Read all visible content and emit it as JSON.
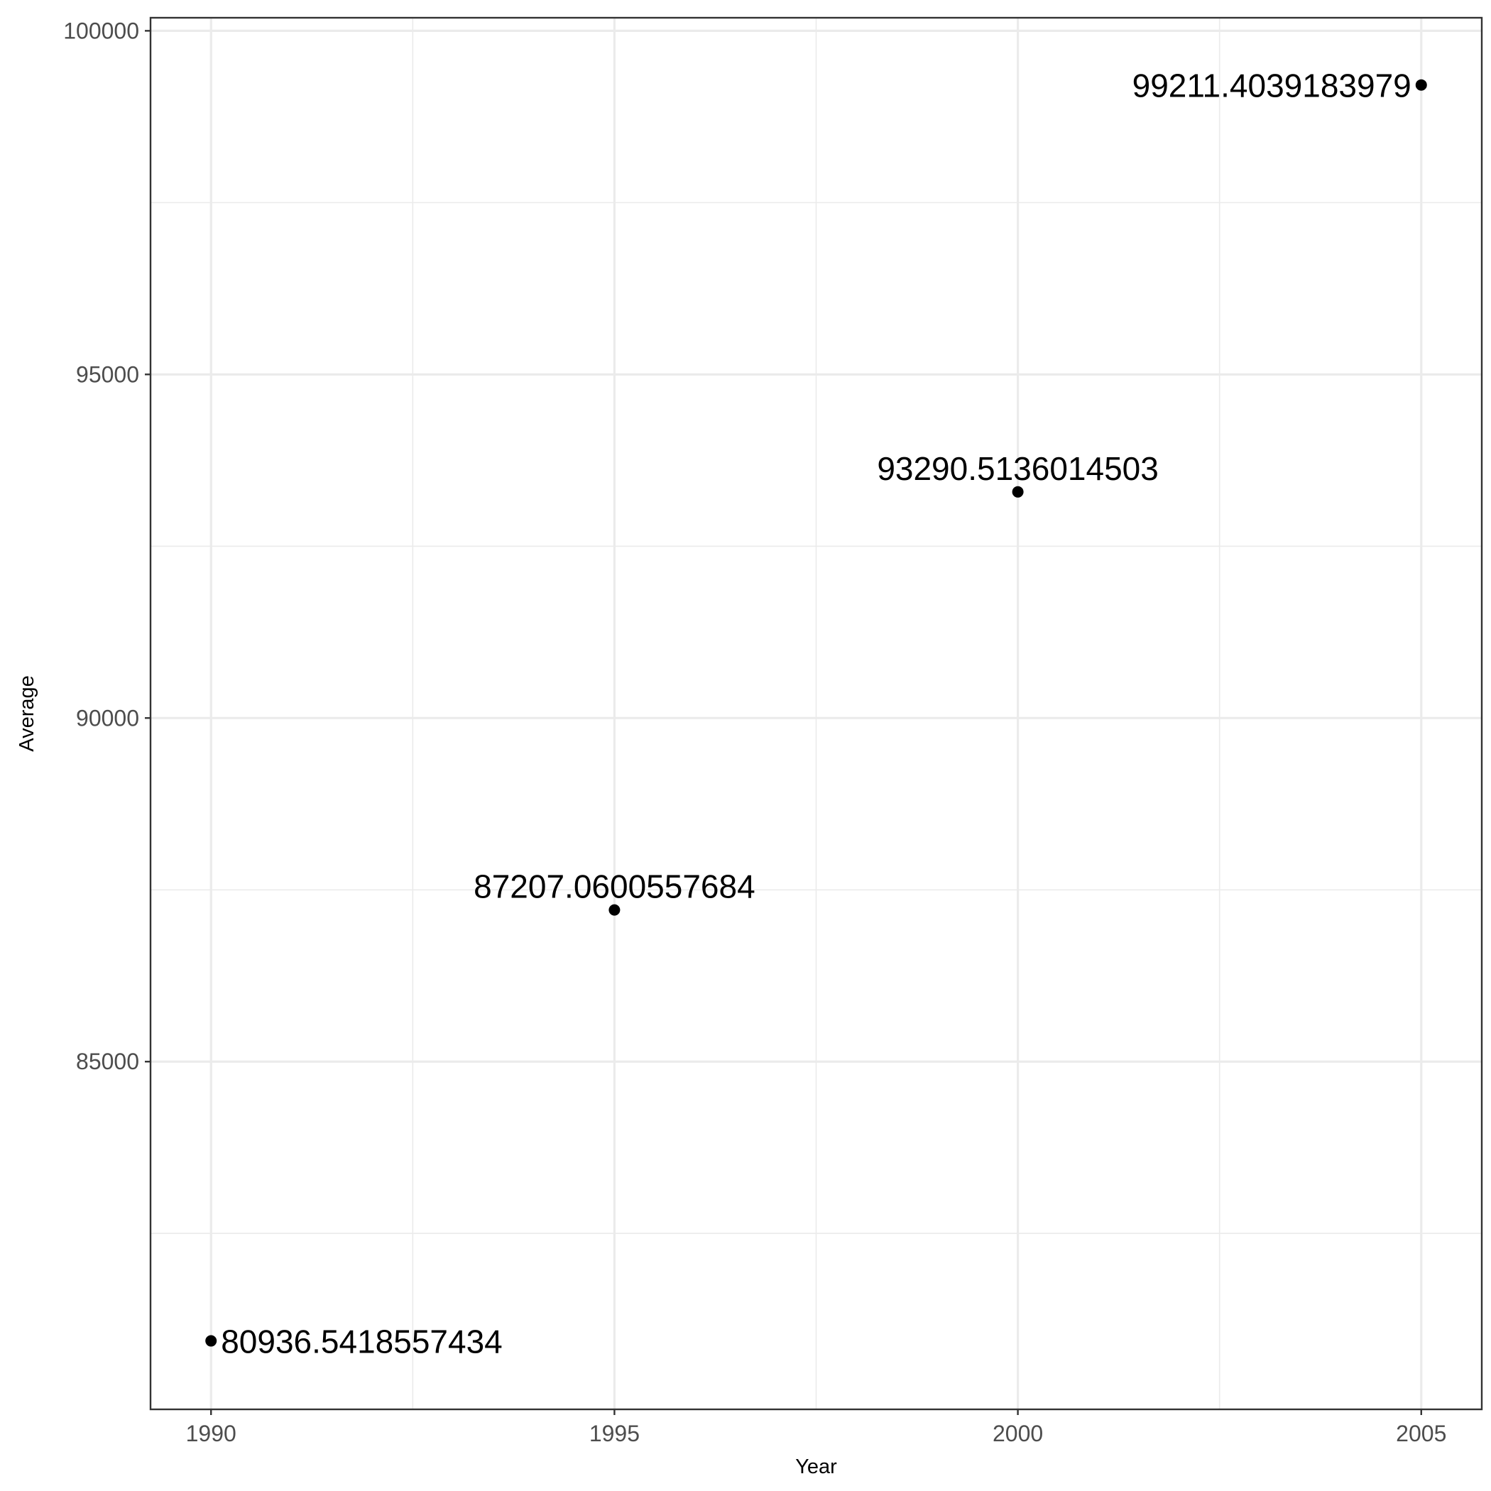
{
  "chart_data": {
    "type": "scatter",
    "title": "",
    "xlabel": "Year",
    "ylabel": "Average",
    "xlim": [
      1989.25,
      2005.75
    ],
    "ylim": [
      79940,
      100190
    ],
    "x_ticks": [
      1990,
      1995,
      2000,
      2005
    ],
    "x_tick_labels": [
      "1990",
      "1995",
      "2000",
      "2005"
    ],
    "x_minor_ticks": [
      1992.5,
      1997.5,
      2002.5
    ],
    "y_ticks": [
      85000,
      90000,
      95000,
      100000
    ],
    "y_tick_labels": [
      "85000",
      "90000",
      "95000",
      "100000"
    ],
    "y_minor_ticks": [
      82500,
      87500,
      92500,
      97500
    ],
    "grid": true,
    "legend": "none",
    "point_color": "#000000",
    "points": [
      {
        "x": 1990,
        "y": 80936.5418557434,
        "label": "80936.5418557434",
        "label_anchor": "start"
      },
      {
        "x": 1995,
        "y": 87207.0600557684,
        "label": "87207.0600557684",
        "label_anchor": "middle"
      },
      {
        "x": 2000,
        "y": 93290.5136014503,
        "label": "93290.5136014503",
        "label_anchor": "middle"
      },
      {
        "x": 2005,
        "y": 99211.4039183979,
        "label": "99211.4039183979",
        "label_anchor": "end"
      }
    ]
  }
}
